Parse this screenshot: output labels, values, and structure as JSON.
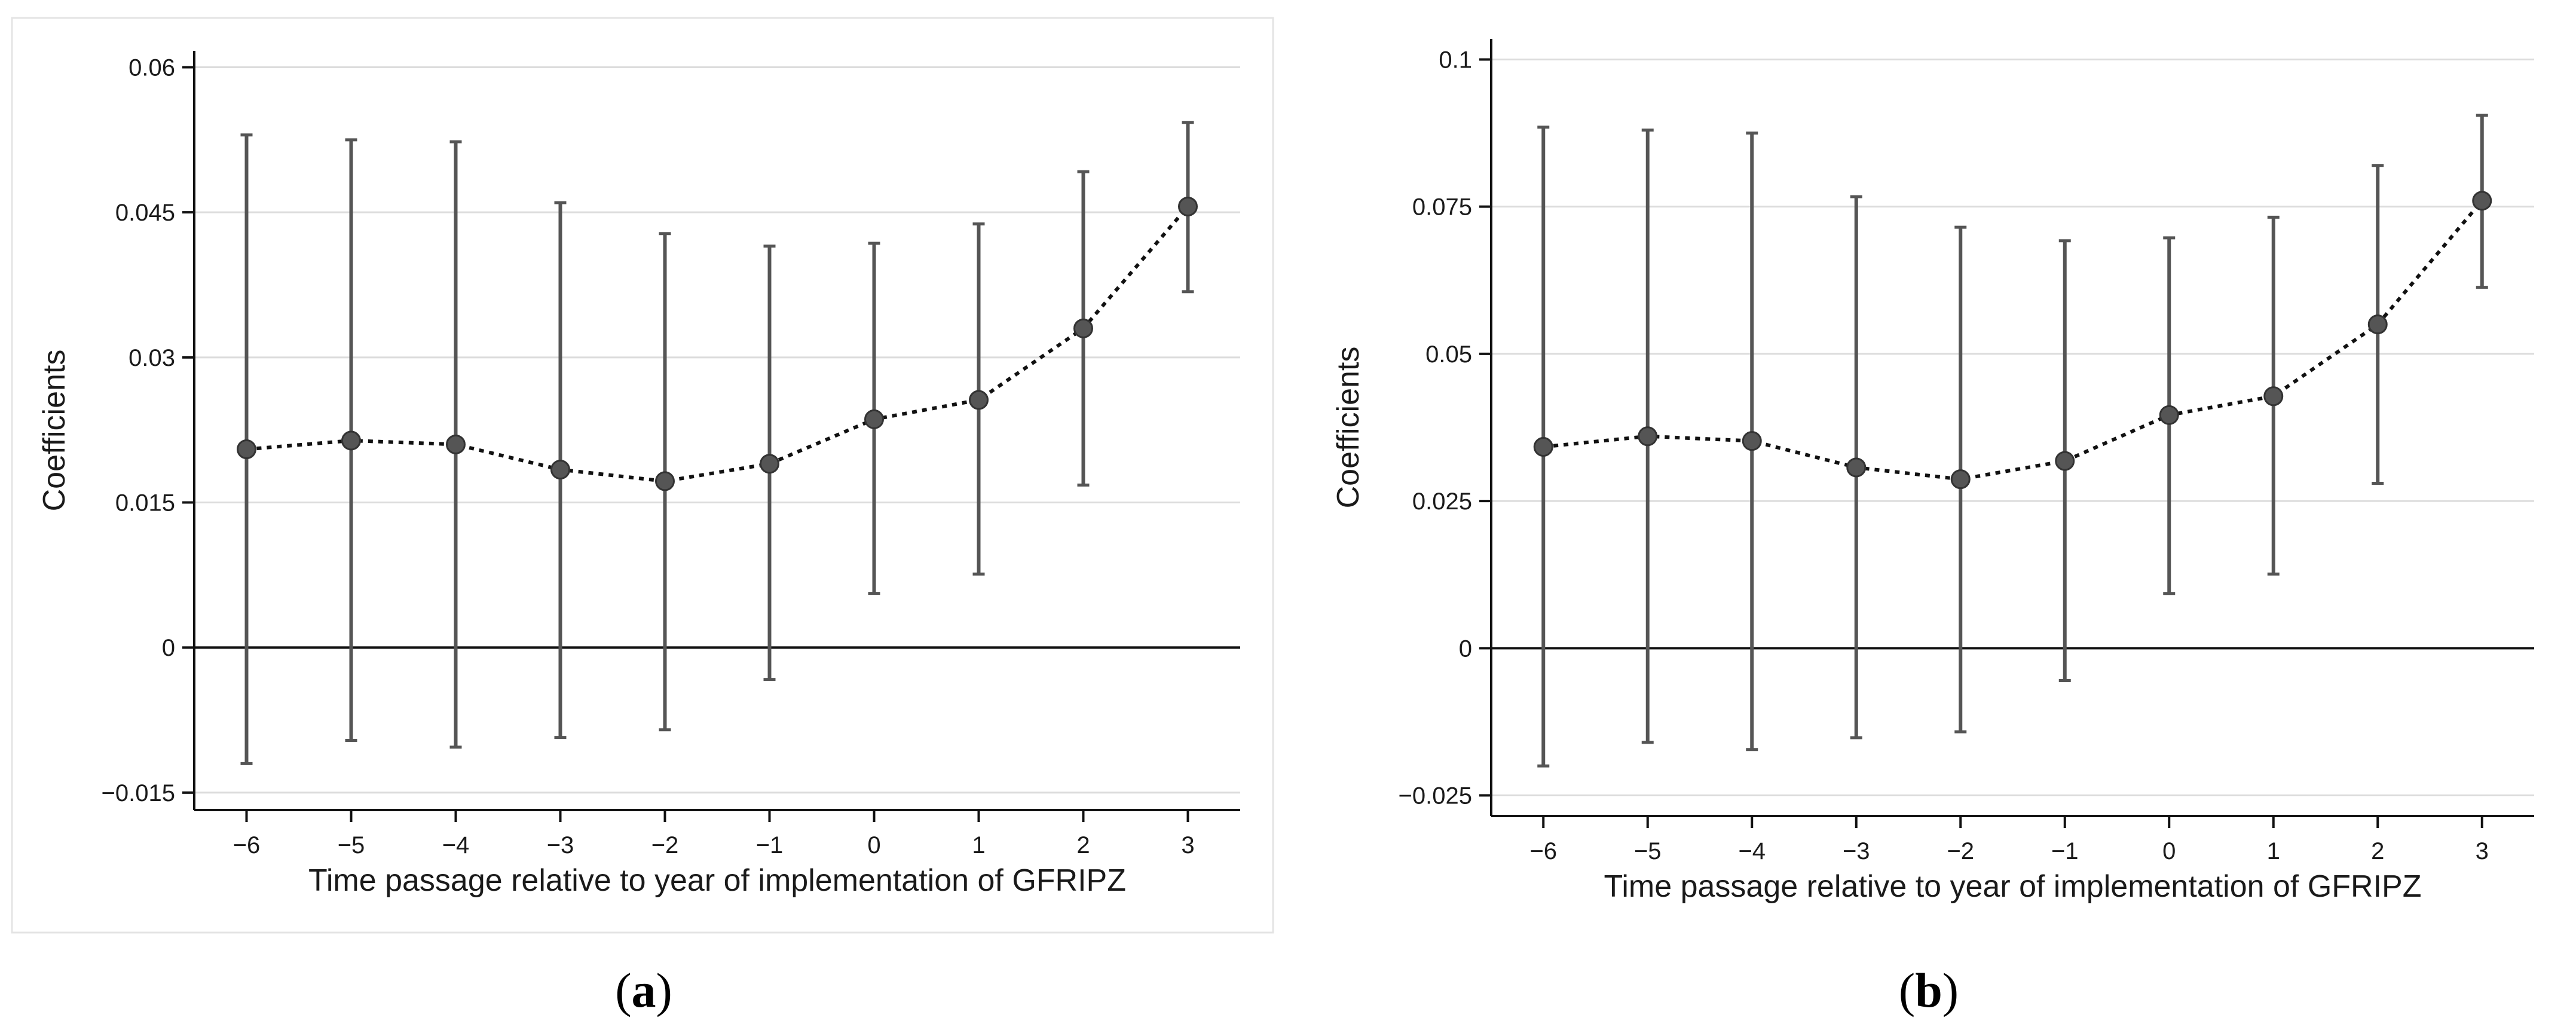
{
  "captions": [
    {
      "open": "(",
      "label": "a",
      "close": ")"
    },
    {
      "open": "(",
      "label": "b",
      "close": ")"
    }
  ],
  "colors": {
    "errorbar": "#555555",
    "marker": "#555555",
    "connector": "#111111",
    "gridline": "#dcdcdc",
    "zero_line": "#111111",
    "axis": "#111111"
  },
  "chart_data": [
    {
      "type": "scatter",
      "panel": "a",
      "title": "",
      "xlabel": "Time passage relative to year of implementation of GFRIPZ",
      "ylabel": "Coefficients",
      "x": [
        -6,
        -5,
        -4,
        -3,
        -2,
        -1,
        0,
        1,
        2,
        3
      ],
      "x_tick_labels": [
        "−6",
        "−5",
        "−4",
        "−3",
        "−2",
        "−1",
        "0",
        "1",
        "2",
        "3"
      ],
      "y_ticks": [
        -0.015,
        0,
        0.015,
        0.03,
        0.045,
        0.06
      ],
      "y_tick_labels": [
        "−0.015",
        "0",
        "0.015",
        "0.03",
        "0.045",
        "0.06"
      ],
      "ylim": [
        -0.0168,
        0.0617
      ],
      "xlim": [
        -6.5,
        3.5
      ],
      "grid": true,
      "reference_line": 0,
      "framed": true,
      "series": [
        {
          "values": [
            0.0205,
            0.0214,
            0.021,
            0.0184,
            0.0172,
            0.019,
            0.0236,
            0.0256,
            0.033,
            0.0456
          ],
          "ci_low": [
            -0.012,
            -0.0096,
            -0.0103,
            -0.0093,
            -0.0085,
            -0.0033,
            0.0056,
            0.0076,
            0.0168,
            0.0368
          ],
          "ci_high": [
            0.053,
            0.0525,
            0.0523,
            0.046,
            0.0428,
            0.0415,
            0.0418,
            0.0438,
            0.0492,
            0.0543
          ]
        }
      ]
    },
    {
      "type": "scatter",
      "panel": "b",
      "title": "",
      "xlabel": "Time passage relative to year of implementation of GFRIPZ",
      "ylabel": "Coefficients",
      "x": [
        -6,
        -5,
        -4,
        -3,
        -2,
        -1,
        0,
        1,
        2,
        3
      ],
      "x_tick_labels": [
        "−6",
        "−5",
        "−4",
        "−3",
        "−2",
        "−1",
        "0",
        "1",
        "2",
        "3"
      ],
      "y_ticks": [
        -0.025,
        0,
        0.025,
        0.05,
        0.075,
        0.1
      ],
      "y_tick_labels": [
        "−0.025",
        "0",
        "0.025",
        "0.05",
        "0.075",
        "0.1"
      ],
      "ylim": [
        -0.0285,
        0.1035
      ],
      "xlim": [
        -6.5,
        3.5
      ],
      "grid": true,
      "reference_line": 0,
      "framed": false,
      "series": [
        {
          "values": [
            0.0342,
            0.036,
            0.0352,
            0.0307,
            0.0287,
            0.0318,
            0.0396,
            0.0428,
            0.055,
            0.076
          ],
          "ci_low": [
            -0.02,
            -0.016,
            -0.0172,
            -0.0152,
            -0.0142,
            -0.0055,
            0.0093,
            0.0126,
            0.028,
            0.0613
          ],
          "ci_high": [
            0.0885,
            0.088,
            0.0875,
            0.0767,
            0.0715,
            0.0692,
            0.0697,
            0.0732,
            0.082,
            0.0905
          ]
        }
      ]
    }
  ]
}
